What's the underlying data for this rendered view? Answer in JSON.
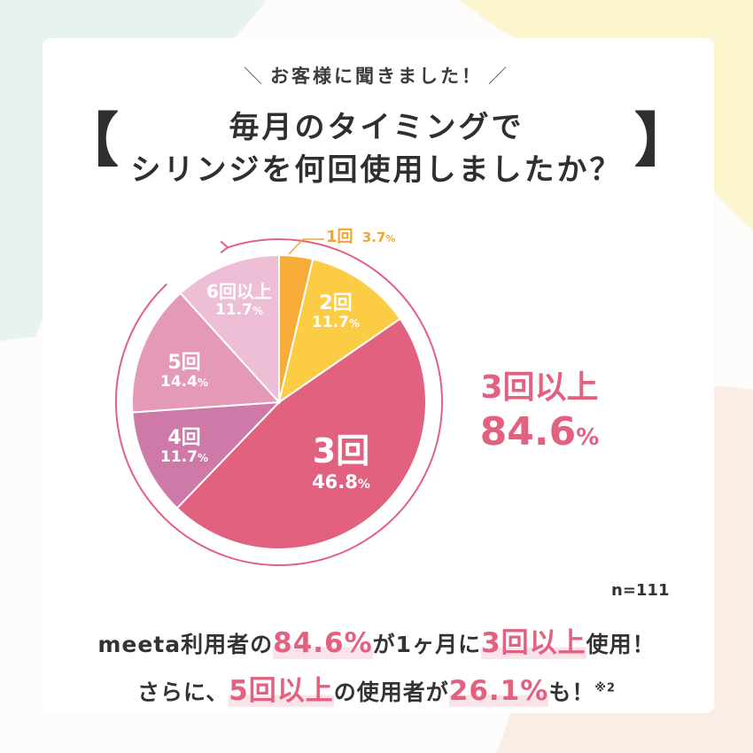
{
  "kicker": "お客様に聞きました！",
  "title_line1": "毎月のタイミングで",
  "title_line2": "シリンジを何回使用しましたか？",
  "chart_data": {
    "type": "pie",
    "title": "毎月のタイミングでシリンジを何回使用しましたか？",
    "start": "top-clockwise",
    "slices": [
      {
        "label": "1回",
        "value": 3.7,
        "color": "#f7ac3a",
        "text_color": "#f0a531"
      },
      {
        "label": "2回",
        "value": 11.7,
        "color": "#fdcc45",
        "text_color": "#ffffff"
      },
      {
        "label": "3回",
        "value": 46.8,
        "color": "#e2617f",
        "text_color": "#ffffff"
      },
      {
        "label": "4回",
        "value": 11.7,
        "color": "#cf79a9",
        "text_color": "#ffffff"
      },
      {
        "label": "5回",
        "value": 14.4,
        "color": "#e49ab7",
        "text_color": "#ffffff"
      },
      {
        "label": "6回以上",
        "value": 11.7,
        "color": "#eebed7",
        "text_color": "#ffffff"
      }
    ],
    "slice_labels": [
      {
        "name": "1回",
        "pct": "3.7",
        "unit": "%"
      },
      {
        "name": "2回",
        "pct": "11.7",
        "unit": "%"
      },
      {
        "name": "3回",
        "pct": "46.8",
        "unit": "%"
      },
      {
        "name": "4回",
        "pct": "11.7",
        "unit": "%"
      },
      {
        "name": "5回",
        "pct": "14.4",
        "unit": "%"
      },
      {
        "name": "6回以上",
        "pct": "11.7",
        "unit": "%"
      }
    ],
    "annotation": {
      "label": "3回以上",
      "value": "84.6",
      "unit": "%"
    },
    "n_note": "n=111"
  },
  "summary1": {
    "a": "meeta利用者の",
    "b": "84.6%",
    "c": "が1ヶ月に",
    "d": "3回以上",
    "e": "使用！"
  },
  "summary2": {
    "a": "さらに、",
    "b": "5回以上",
    "c": "の使用者が",
    "d": "26.1%",
    "e": "も！",
    "f": "※2"
  },
  "colors": {
    "accent": "#e2617f",
    "text": "#333333",
    "arc": "#e2617f"
  }
}
